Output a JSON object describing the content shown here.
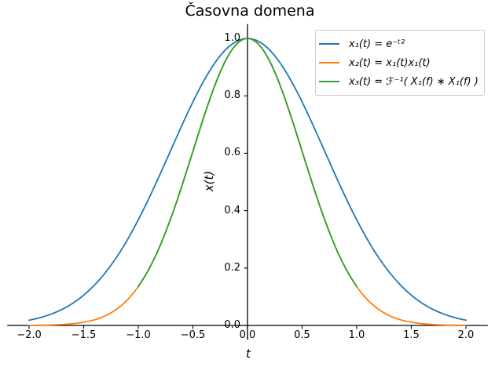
{
  "chart_data": {
    "type": "line",
    "title": "Časovna domena",
    "xlabel": "t",
    "ylabel": "x(t)",
    "xlim": [
      -2.2,
      2.2
    ],
    "ylim": [
      -0.05,
      1.05
    ],
    "grid": false,
    "axis_style": "centered-spines",
    "legend_position": "upper right",
    "x_ticks": {
      "values": [
        -2.0,
        -1.5,
        -1.0,
        -0.5,
        0.0,
        0.5,
        1.0,
        1.5,
        2.0
      ],
      "labels": [
        "−2.0",
        "−1.5",
        "−1.0",
        "−0.5",
        "0.0",
        "0.5",
        "1.0",
        "1.5",
        "2.0"
      ]
    },
    "y_ticks": {
      "values": [
        0.0,
        0.2,
        0.4,
        0.6,
        0.8,
        1.0
      ],
      "labels": [
        "0.0",
        "0.2",
        "0.4",
        "0.6",
        "0.8",
        "1.0"
      ]
    },
    "series": [
      {
        "name": "x1",
        "label": "x₁(t) = e⁻ᵗ²",
        "color": "#1f77b4",
        "x": [
          -2.0,
          -1.9,
          -1.8,
          -1.7,
          -1.6,
          -1.5,
          -1.4,
          -1.3,
          -1.2,
          -1.1,
          -1.0,
          -0.9,
          -0.8,
          -0.7,
          -0.6,
          -0.5,
          -0.4,
          -0.3,
          -0.2,
          -0.1,
          0.0,
          0.1,
          0.2,
          0.3,
          0.4,
          0.5,
          0.6,
          0.7,
          0.8,
          0.9,
          1.0,
          1.1,
          1.2,
          1.3,
          1.4,
          1.5,
          1.6,
          1.7,
          1.8,
          1.9,
          2.0
        ],
        "y": [
          0.0183,
          0.0271,
          0.0392,
          0.0556,
          0.0773,
          0.1054,
          0.1409,
          0.1845,
          0.2369,
          0.2982,
          0.3679,
          0.4449,
          0.5273,
          0.6126,
          0.6977,
          0.7788,
          0.8521,
          0.9139,
          0.9608,
          0.99,
          1.0,
          0.99,
          0.9608,
          0.9139,
          0.8521,
          0.7788,
          0.6977,
          0.6126,
          0.5273,
          0.4449,
          0.3679,
          0.2982,
          0.2369,
          0.1845,
          0.1409,
          0.1054,
          0.0773,
          0.0556,
          0.0392,
          0.0271,
          0.0183
        ]
      },
      {
        "name": "x2",
        "label": "x₂(t) = x₁(t)x₁(t)",
        "color": "#ff7f0e",
        "x": [
          -2.0,
          -1.9,
          -1.8,
          -1.7,
          -1.6,
          -1.5,
          -1.4,
          -1.3,
          -1.2,
          -1.1,
          -1.0,
          -0.9,
          -0.8,
          -0.7,
          -0.6,
          -0.5,
          -0.4,
          -0.3,
          -0.2,
          -0.1,
          0.0,
          0.1,
          0.2,
          0.3,
          0.4,
          0.5,
          0.6,
          0.7,
          0.8,
          0.9,
          1.0,
          1.1,
          1.2,
          1.3,
          1.4,
          1.5,
          1.6,
          1.7,
          1.8,
          1.9,
          2.0
        ],
        "y": [
          0.0003,
          0.0007,
          0.0015,
          0.0031,
          0.006,
          0.0111,
          0.0198,
          0.034,
          0.0561,
          0.0889,
          0.1353,
          0.1979,
          0.278,
          0.3753,
          0.4868,
          0.6065,
          0.7261,
          0.8353,
          0.9231,
          0.9802,
          1.0,
          0.9802,
          0.9231,
          0.8353,
          0.7261,
          0.6065,
          0.4868,
          0.3753,
          0.278,
          0.1979,
          0.1353,
          0.0889,
          0.0561,
          0.034,
          0.0198,
          0.0111,
          0.006,
          0.0031,
          0.0015,
          0.0007,
          0.0003
        ]
      },
      {
        "name": "x3",
        "label": "x₃(t) = ℱ⁻¹( X₁(f) ∗ X₁(f) )",
        "color": "#2ca02c",
        "x": [
          -1.0,
          -0.9,
          -0.8,
          -0.7,
          -0.6,
          -0.5,
          -0.4,
          -0.3,
          -0.2,
          -0.1,
          0.0,
          0.1,
          0.2,
          0.3,
          0.4,
          0.5,
          0.6,
          0.7,
          0.8,
          0.9,
          1.0
        ],
        "y": [
          0.1353,
          0.1979,
          0.278,
          0.3753,
          0.4868,
          0.6065,
          0.7261,
          0.8353,
          0.9231,
          0.9802,
          1.0,
          0.9802,
          0.9231,
          0.8353,
          0.7261,
          0.6065,
          0.4868,
          0.3753,
          0.278,
          0.1979,
          0.1353
        ]
      }
    ]
  }
}
